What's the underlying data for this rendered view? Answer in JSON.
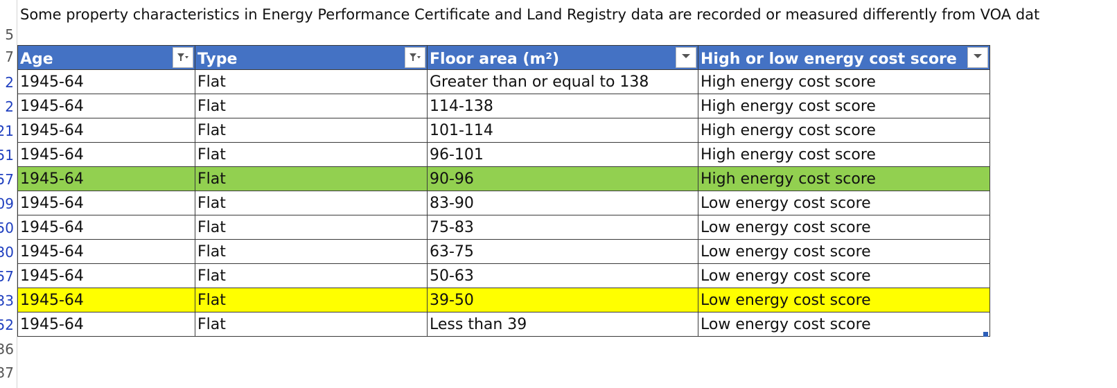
{
  "notice": "Some property characteristics in Energy Performance Certificate and Land Registry data are recorded or measured differently from VOA dat",
  "row_headers": [
    {
      "label": "5",
      "filtered": false
    },
    {
      "label": "7",
      "filtered": false
    },
    {
      "label": "2",
      "filtered": true
    },
    {
      "label": "2",
      "filtered": true
    },
    {
      "label": "21",
      "filtered": true
    },
    {
      "label": "51",
      "filtered": true
    },
    {
      "label": "57",
      "filtered": true
    },
    {
      "label": "09",
      "filtered": true
    },
    {
      "label": "50",
      "filtered": true
    },
    {
      "label": "30",
      "filtered": true
    },
    {
      "label": "57",
      "filtered": true
    },
    {
      "label": "33",
      "filtered": true
    },
    {
      "label": "52",
      "filtered": true
    },
    {
      "label": "36",
      "filtered": false
    },
    {
      "label": "37",
      "filtered": false
    }
  ],
  "table": {
    "columns": [
      {
        "label": "Age",
        "filter": "applied",
        "icon": "filter-applied-icon"
      },
      {
        "label": "Type",
        "filter": "applied",
        "icon": "filter-applied-icon"
      },
      {
        "label": "Floor area (m²)",
        "filter": "dropdown",
        "icon": "dropdown-arrow-icon"
      },
      {
        "label": "High or low  energy cost score",
        "filter": "dropdown",
        "icon": "dropdown-arrow-icon"
      }
    ],
    "rows": [
      {
        "age": "1945-64",
        "type": "Flat",
        "floor_area": "Greater than or equal to 138",
        "score": "High energy cost score",
        "highlight": ""
      },
      {
        "age": "1945-64",
        "type": "Flat",
        "floor_area": "114-138",
        "score": "High energy cost score",
        "highlight": ""
      },
      {
        "age": "1945-64",
        "type": "Flat",
        "floor_area": "101-114",
        "score": "High energy cost score",
        "highlight": ""
      },
      {
        "age": "1945-64",
        "type": "Flat",
        "floor_area": "96-101",
        "score": "High energy cost score",
        "highlight": ""
      },
      {
        "age": "1945-64",
        "type": "Flat",
        "floor_area": "90-96",
        "score": "High energy cost score",
        "highlight": "green"
      },
      {
        "age": "1945-64",
        "type": "Flat",
        "floor_area": "83-90",
        "score": "Low energy cost score",
        "highlight": ""
      },
      {
        "age": "1945-64",
        "type": "Flat",
        "floor_area": "75-83",
        "score": "Low energy cost score",
        "highlight": ""
      },
      {
        "age": "1945-64",
        "type": "Flat",
        "floor_area": "63-75",
        "score": "Low energy cost score",
        "highlight": ""
      },
      {
        "age": "1945-64",
        "type": "Flat",
        "floor_area": "50-63",
        "score": "Low energy cost score",
        "highlight": ""
      },
      {
        "age": "1945-64",
        "type": "Flat",
        "floor_area": "39-50",
        "score": "Low energy cost score",
        "highlight": "yellow"
      },
      {
        "age": "1945-64",
        "type": "Flat",
        "floor_area": "Less than 39",
        "score": "Low energy cost score",
        "highlight": ""
      }
    ]
  },
  "colors": {
    "header_bg": "#4472c4",
    "header_text": "#ffffff",
    "highlight_green": "#92d050",
    "highlight_yellow": "#ffff00",
    "filtered_row_number": "#1f3fbf"
  }
}
